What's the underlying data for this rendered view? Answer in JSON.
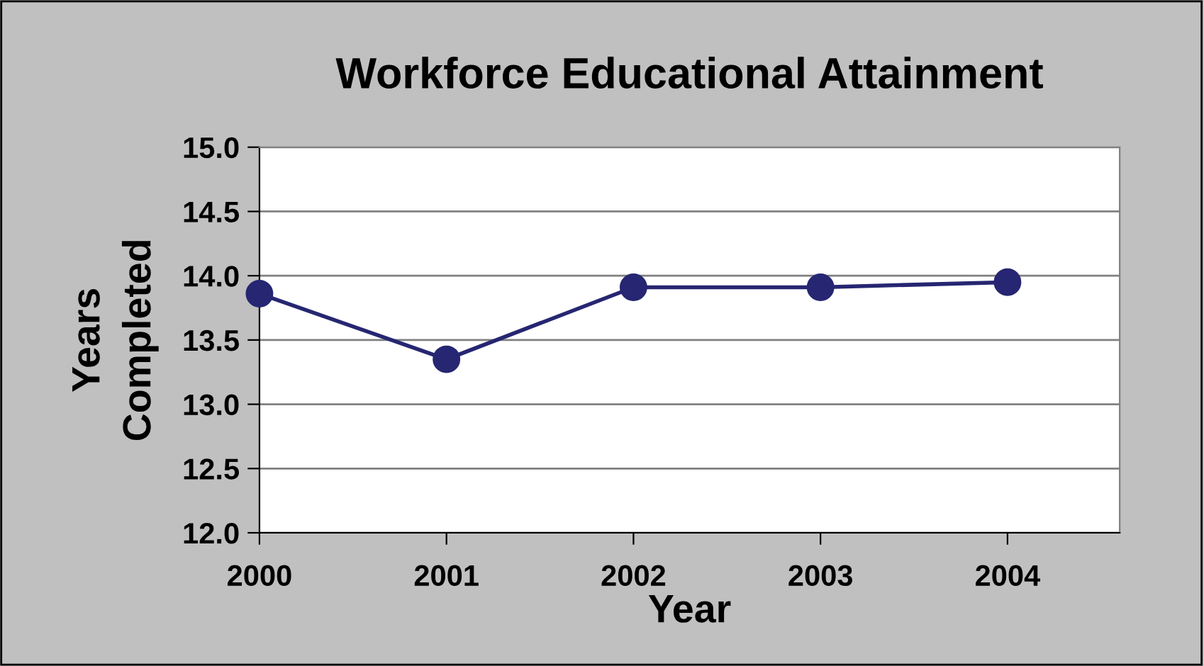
{
  "chart_data": {
    "type": "line",
    "title": "Workforce Educational Attainment",
    "xlabel": "Year",
    "ylabel": "Years\nCompleted",
    "x": [
      2000,
      2001,
      2002,
      2003,
      2004
    ],
    "series": [
      {
        "color": "#262672",
        "values": [
          13.86,
          13.35,
          13.91,
          13.91,
          13.95
        ]
      }
    ],
    "xlim": [
      2000,
      2004.6
    ],
    "xticks": [
      2000,
      2001,
      2002,
      2003,
      2004
    ],
    "ylim": [
      12.0,
      15.0
    ],
    "yticks": [
      {
        "value": 12.0,
        "label": "12.0"
      },
      {
        "value": 12.5,
        "label": "12.5"
      },
      {
        "value": 13.0,
        "label": "13.0"
      },
      {
        "value": 13.5,
        "label": "13.5"
      },
      {
        "value": 14.0,
        "label": "14.0"
      },
      {
        "value": 14.5,
        "label": "14.5"
      },
      {
        "value": 15.0,
        "label": "15.0"
      }
    ],
    "grid": "y",
    "marker": "circle",
    "line_style": "solid",
    "legend": false
  }
}
